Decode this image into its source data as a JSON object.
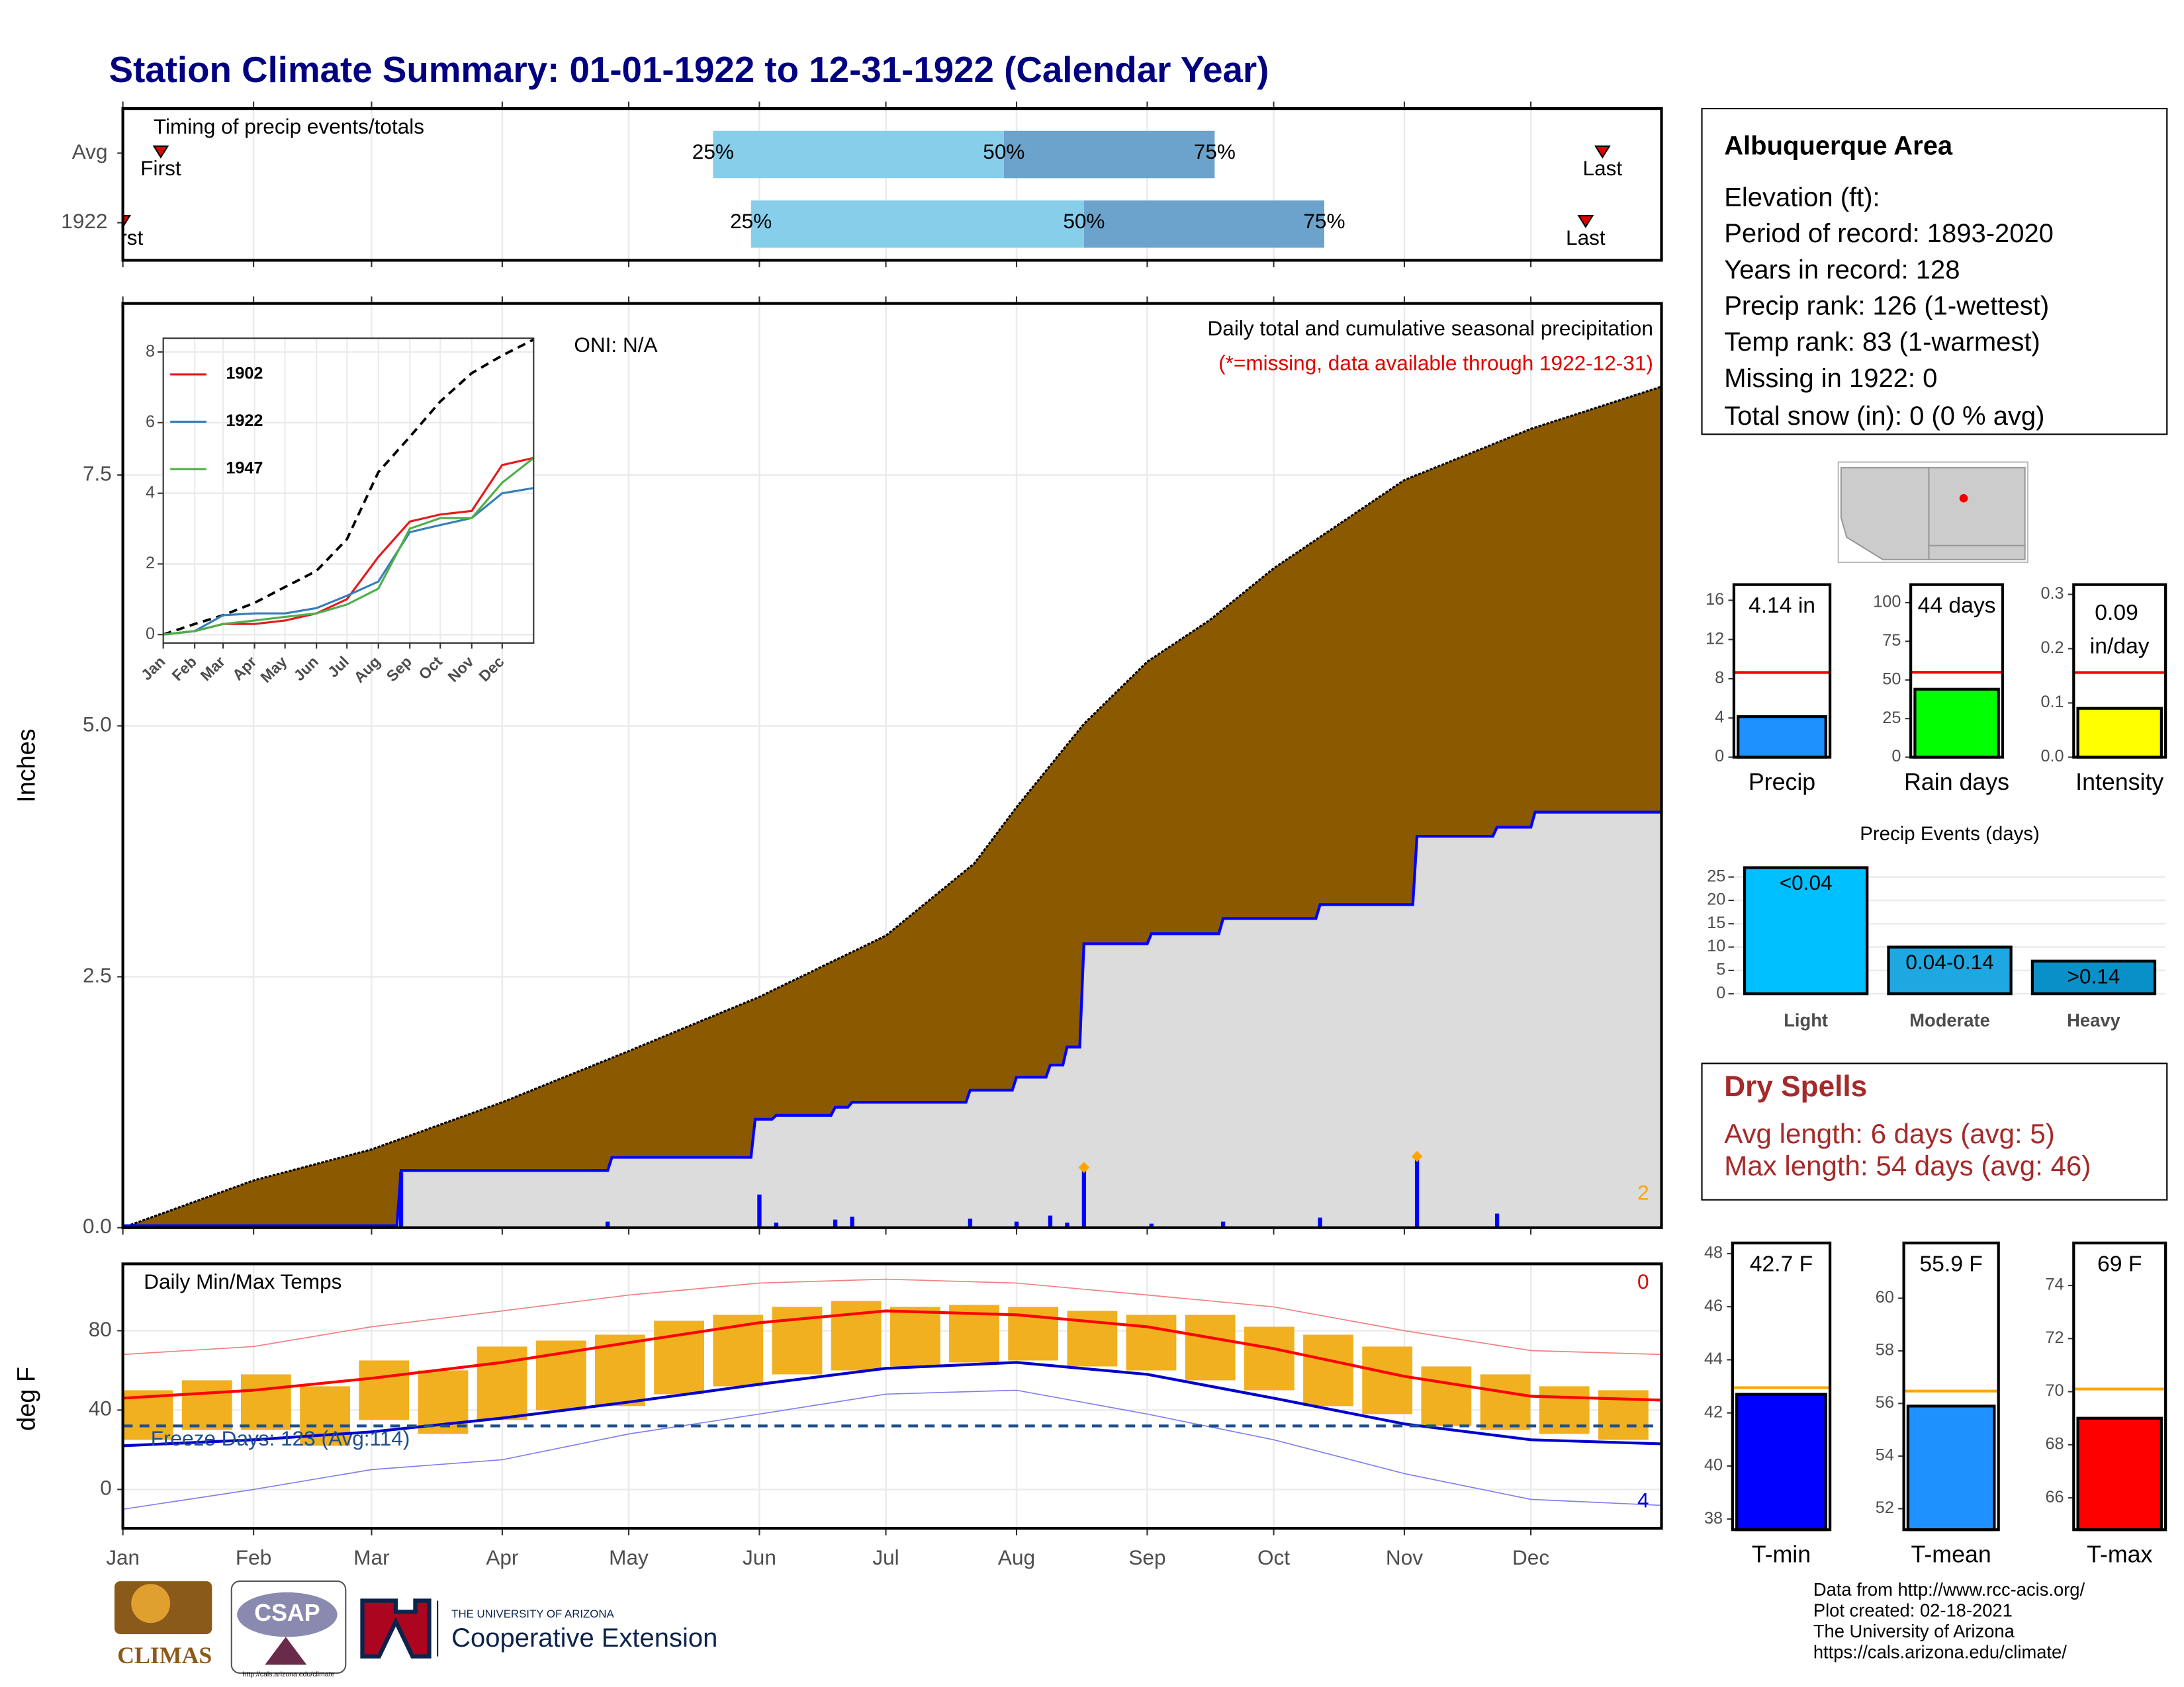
{
  "title": "Station Climate Summary: 01-01-1922 to 12-31-1922 (Calendar Year)",
  "chart_data": [
    {
      "type": "timing",
      "title": "Timing of precip events/totals",
      "categories": [
        "Avg",
        "1922"
      ],
      "first": [
        10,
        1
      ],
      "q25": [
        141,
        150
      ],
      "q50": [
        210,
        229
      ],
      "q75": [
        260,
        286
      ],
      "last": [
        352,
        348
      ],
      "marker_labels": {
        "first": "First",
        "last": "Last",
        "q25": "25%",
        "q50": "50%",
        "q75": "75%"
      },
      "colors": {
        "low": "#87ceeb",
        "high": "#6ba3cc",
        "marker": "#e00000"
      },
      "xlim": [
        1,
        366
      ],
      "xticks": [
        1,
        32,
        60,
        91,
        121,
        152,
        182,
        213,
        244,
        274,
        305,
        335
      ],
      "grid": true
    },
    {
      "type": "cumulative",
      "title": "Daily total and cumulative seasonal precipitation",
      "subtitle": "(*=missing, data available through 1922-12-31)",
      "annotation": "ONI: N/A",
      "corner_label": 2,
      "y_label": "Inches",
      "xlim": [
        1,
        366
      ],
      "ylim": [
        0,
        9.21
      ],
      "xticks": [
        1,
        32,
        60,
        91,
        121,
        152,
        182,
        213,
        244,
        274,
        305,
        335
      ],
      "yticks": [
        {
          "value": 0,
          "label": "0.0"
        },
        2.5,
        {
          "value": 5,
          "label": "5.0"
        },
        7.5
      ],
      "grid": true,
      "average": {
        "color": "#8b5a00",
        "x": [
          1,
          32,
          60,
          91,
          121,
          152,
          182,
          203,
          213,
          229,
          244,
          259,
          274,
          305,
          335,
          366
        ],
        "values": [
          0,
          0.47,
          0.78,
          1.25,
          1.76,
          2.3,
          2.91,
          3.63,
          4.19,
          5.02,
          5.64,
          6.06,
          6.57,
          7.45,
          7.96,
          8.38
        ]
      },
      "observed": {
        "color": "#0000ff",
        "fill": "#dcdcdc",
        "x": [
          1,
          66,
          67,
          116,
          117,
          150,
          151,
          155,
          156,
          169,
          170,
          173,
          174,
          201,
          202,
          212,
          213,
          220,
          221,
          224,
          225,
          228,
          229,
          244,
          245,
          261,
          262,
          284,
          285,
          307,
          308,
          326,
          327,
          335,
          336,
          366
        ],
        "values": [
          0.02,
          0.02,
          0.57,
          0.57,
          0.7,
          0.7,
          1.08,
          1.08,
          1.12,
          1.12,
          1.2,
          1.2,
          1.25,
          1.25,
          1.37,
          1.37,
          1.5,
          1.5,
          1.62,
          1.62,
          1.8,
          1.8,
          2.83,
          2.83,
          2.93,
          2.93,
          3.08,
          3.08,
          3.22,
          3.22,
          3.9,
          3.9,
          3.99,
          3.99,
          4.14,
          4.14
        ]
      },
      "daily": {
        "color": "#0000ff",
        "x": [
          67,
          116,
          152,
          156,
          170,
          174,
          202,
          213,
          221,
          225,
          229,
          245,
          262,
          285,
          308,
          327
        ],
        "values": [
          0.55,
          0.06,
          0.33,
          0.05,
          0.08,
          0.11,
          0.09,
          0.06,
          0.12,
          0.05,
          0.58,
          0.04,
          0.06,
          0.1,
          0.68,
          0.14
        ]
      },
      "extremes": {
        "color": "#ffa500",
        "x": [
          229,
          308
        ],
        "values": [
          0.6,
          0.71
        ]
      }
    },
    {
      "type": "line",
      "xlim": [
        1,
        366
      ],
      "ylim": [
        -0.24,
        8.39
      ],
      "yticks": [
        0,
        2,
        4,
        6,
        8
      ],
      "xticks": [
        {
          "value": 1,
          "label": "Jan"
        },
        {
          "value": 32,
          "label": "Feb"
        },
        {
          "value": 60,
          "label": "Mar"
        },
        {
          "value": 91,
          "label": "Apr"
        },
        {
          "value": 121,
          "label": "May"
        },
        {
          "value": 152,
          "label": "Jun"
        },
        {
          "value": 182,
          "label": "Jul"
        },
        {
          "value": 213,
          "label": "Aug"
        },
        {
          "value": 244,
          "label": "Sep"
        },
        {
          "value": 274,
          "label": "Oct"
        },
        {
          "value": 305,
          "label": "Nov"
        },
        {
          "value": 335,
          "label": "Dec"
        }
      ],
      "grid": true,
      "x": [
        1,
        32,
        60,
        91,
        121,
        152,
        182,
        213,
        244,
        274,
        305,
        335,
        366
      ],
      "series": [
        {
          "color": "#000000",
          "dash": true,
          "values": [
            0,
            0.3,
            0.55,
            0.9,
            1.35,
            1.8,
            2.7,
            4.6,
            5.6,
            6.6,
            7.4,
            7.9,
            8.35
          ]
        },
        {
          "name": "1902",
          "color": "#e41a1c",
          "values": [
            0,
            0.1,
            0.3,
            0.3,
            0.4,
            0.6,
            1.0,
            2.2,
            3.2,
            3.4,
            3.5,
            4.8,
            5.0
          ]
        },
        {
          "name": "1922",
          "color": "#377eb8",
          "values": [
            0,
            0.1,
            0.55,
            0.6,
            0.6,
            0.75,
            1.1,
            1.5,
            2.9,
            3.1,
            3.3,
            4.0,
            4.15
          ]
        },
        {
          "name": "1947",
          "color": "#4daf4a",
          "values": [
            0,
            0.1,
            0.3,
            0.4,
            0.5,
            0.6,
            0.85,
            1.3,
            3.0,
            3.3,
            3.3,
            4.3,
            5.0
          ]
        }
      ]
    },
    {
      "type": "temperature",
      "title": "Daily Min/Max Temps",
      "annotation": "Freeze Days: 123 (Avg:114)",
      "y_label": "deg F",
      "record_highs": 0,
      "record_lows": 4,
      "freeze_line": 32,
      "freeze_color": "#1f4e8c",
      "xlim": [
        1,
        366
      ],
      "ylim": [
        -19.6,
        113.7
      ],
      "yticks": [
        0,
        40,
        80
      ],
      "grid": true,
      "xticks": [
        {
          "value": 1,
          "label": "Jan"
        },
        {
          "value": 32,
          "label": "Feb"
        },
        {
          "value": 60,
          "label": "Mar"
        },
        {
          "value": 91,
          "label": "Apr"
        },
        {
          "value": 121,
          "label": "May"
        },
        {
          "value": 152,
          "label": "Jun"
        },
        {
          "value": 182,
          "label": "Jul"
        },
        {
          "value": 213,
          "label": "Aug"
        },
        {
          "value": 244,
          "label": "Sep"
        },
        {
          "value": 274,
          "label": "Oct"
        },
        {
          "value": 305,
          "label": "Nov"
        },
        {
          "value": 335,
          "label": "Dec"
        }
      ],
      "daily": {
        "color": "#f0b020",
        "x": [
          1,
          15,
          29,
          43,
          57,
          71,
          85,
          99,
          113,
          127,
          141,
          155,
          169,
          183,
          197,
          211,
          225,
          239,
          253,
          267,
          281,
          295,
          309,
          323,
          337,
          351
        ],
        "low": [
          25,
          30,
          30,
          22,
          35,
          28,
          35,
          40,
          42,
          48,
          52,
          58,
          60,
          62,
          64,
          65,
          62,
          60,
          55,
          50,
          42,
          38,
          32,
          30,
          28,
          25
        ],
        "high": [
          50,
          55,
          58,
          52,
          65,
          60,
          72,
          75,
          78,
          85,
          88,
          92,
          95,
          92,
          93,
          92,
          90,
          88,
          88,
          82,
          78,
          72,
          62,
          58,
          52,
          50
        ]
      },
      "x": [
        1,
        32,
        60,
        91,
        121,
        152,
        182,
        213,
        244,
        274,
        305,
        335,
        366
      ],
      "series": [
        {
          "color": "#f08080",
          "width": 0.8,
          "values": [
            68,
            72,
            82,
            90,
            98,
            104,
            106,
            104,
            98,
            92,
            80,
            70,
            68
          ]
        },
        {
          "color": "#8080f0",
          "width": 0.8,
          "values": [
            -10,
            0,
            10,
            15,
            28,
            38,
            48,
            50,
            38,
            25,
            8,
            -5,
            -8
          ]
        },
        {
          "color": "#ff0000",
          "width": 2,
          "values": [
            46,
            50,
            56,
            64,
            74,
            84,
            90,
            88,
            82,
            71,
            57,
            47,
            45
          ]
        },
        {
          "color": "#0000cc",
          "width": 2,
          "values": [
            22,
            25,
            29,
            36,
            44,
            53,
            61,
            64,
            58,
            46,
            33,
            25,
            23
          ]
        }
      ]
    },
    {
      "type": "gauge",
      "categories": [
        "Precip"
      ],
      "values": [
        4.14
      ],
      "value_labels": [
        "4.14 in"
      ],
      "average": 8.64,
      "color": "#1e90ff",
      "avg_color": "#ff0000",
      "ylim": [
        0,
        17.6
      ],
      "yticks": [
        0,
        4,
        8,
        12,
        16
      ]
    },
    {
      "type": "gauge",
      "categories": [
        "Rain days"
      ],
      "values": [
        44
      ],
      "value_labels": [
        "44 days"
      ],
      "average": 55,
      "color": "#00ff00",
      "avg_color": "#ff0000",
      "ylim": [
        0,
        111.7
      ],
      "yticks": [
        0,
        25,
        50,
        75,
        100
      ]
    },
    {
      "type": "gauge",
      "categories": [
        "Intensity"
      ],
      "values": [
        0.09
      ],
      "value_labels": [
        "0.09 in/day"
      ],
      "wrap": true,
      "average": 0.156,
      "color": "#ffff00",
      "avg_color": "#ff0000",
      "ylim": [
        0,
        0.318
      ],
      "yticks": [
        {
          "value": 0,
          "label": "0.0"
        },
        0.1,
        0.2,
        0.3
      ]
    },
    {
      "type": "bar",
      "title": "Precip Events (days)",
      "categories": [
        "Light",
        "Moderate",
        "Heavy"
      ],
      "values": [
        27,
        10,
        7
      ],
      "bar_labels": [
        "<0.04",
        "0.04-0.14",
        ">0.14"
      ],
      "colors": [
        "#00bfff",
        "#1ea7e0",
        "#0a90c8"
      ],
      "ylim": [
        -1.2,
        28
      ],
      "yticks": [
        0,
        5,
        10,
        15,
        20,
        25
      ],
      "grid": true
    },
    {
      "type": "gauge",
      "categories": [
        "T-min"
      ],
      "values": [
        42.7
      ],
      "value_labels": [
        "42.7 F"
      ],
      "average": 42.95,
      "color": "#0000ff",
      "avg_color": "#ffa500",
      "ylim": [
        37.6,
        48.4
      ],
      "yticks": [
        38,
        40,
        42,
        44,
        46,
        48
      ]
    },
    {
      "type": "gauge",
      "categories": [
        "T-mean"
      ],
      "values": [
        55.9
      ],
      "value_labels": [
        "55.9 F"
      ],
      "average": 56.47,
      "color": "#1e90ff",
      "avg_color": "#ffa500",
      "ylim": [
        51.2,
        62.1
      ],
      "yticks": [
        52,
        54,
        56,
        58,
        60
      ]
    },
    {
      "type": "gauge",
      "categories": [
        "T-max"
      ],
      "values": [
        69
      ],
      "value_labels": [
        "69 F"
      ],
      "average": 70.1,
      "color": "#ff0000",
      "avg_color": "#ffa500",
      "ylim": [
        64.8,
        75.6
      ],
      "yticks": [
        66,
        68,
        70,
        72,
        74
      ]
    }
  ],
  "station_info": {
    "name": "Albuquerque Area",
    "lines": [
      "Elevation (ft):",
      "Period of record: 1893-2020",
      "Years in record: 128",
      "Precip rank: 126 (1-wettest)",
      "Temp rank: 83 (1-warmest)",
      "Missing in 1922: 0",
      "Total snow (in): 0 (0 % avg)"
    ]
  },
  "dry_spells": {
    "title": "Dry Spells",
    "lines": [
      "Avg length: 6 days (avg: 5)",
      "Max length: 54 days (avg: 46)"
    ]
  },
  "footer": {
    "logos": [
      "CLIMAS",
      "CSAP",
      "http://cals.arizona.edu/climate",
      "THE UNIVERSITY OF ARIZONA",
      "Cooperative Extension"
    ],
    "credits": [
      "Data from http://www.rcc-acis.org/",
      "Plot created: 02-18-2021",
      "The University of Arizona",
      "https://cals.arizona.edu/climate/"
    ]
  }
}
